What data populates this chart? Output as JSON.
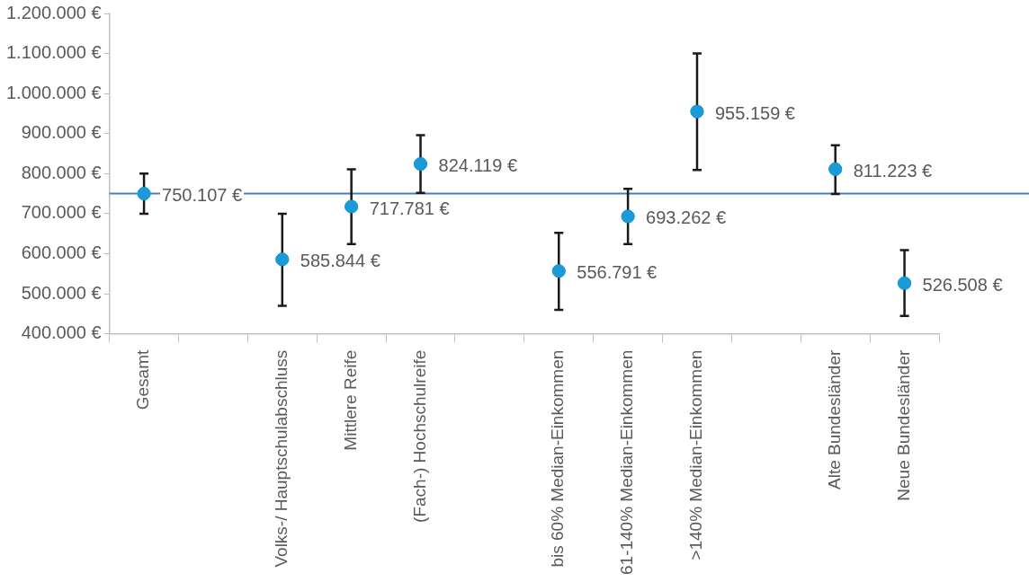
{
  "chart_data": {
    "type": "scatter",
    "categories": [
      "Gesamt",
      null,
      "Volks-/ Hauptschulabschluss",
      "Mittlere Reife",
      "(Fach-) Hochschulreife",
      null,
      "bis 60% Median-Einkommen",
      "61-140% Median-Einkommen",
      ">140% Median-Einkommen",
      null,
      "Alte Bundesländer",
      "Neue Bundesländer"
    ],
    "series": [
      {
        "color": "#1a9bd7",
        "values": [
          750107,
          null,
          585844,
          717781,
          824119,
          null,
          556791,
          693262,
          955159,
          null,
          811223,
          526508
        ],
        "errors": [
          [
            700000,
            800000
          ],
          null,
          [
            470000,
            700000
          ],
          [
            624000,
            811000
          ],
          [
            752000,
            896000
          ],
          null,
          [
            460000,
            652000
          ],
          [
            624000,
            762000
          ],
          [
            809000,
            1100000
          ],
          null,
          [
            749000,
            871000
          ],
          [
            445000,
            609000
          ]
        ],
        "value_labels": [
          "750.107 €",
          null,
          "585.844 €",
          "717.781 €",
          "824.119 €",
          null,
          "556.791 €",
          "693.262 €",
          "955.159 €",
          null,
          "811.223 €",
          "526.508 €"
        ]
      }
    ],
    "ylim": [
      400000,
      1200000
    ],
    "yticks": [
      {
        "value": 400000,
        "label": "400.000 €"
      },
      {
        "value": 500000,
        "label": "500.000 €"
      },
      {
        "value": 600000,
        "label": "600.000 €"
      },
      {
        "value": 700000,
        "label": "700.000 €"
      },
      {
        "value": 800000,
        "label": "800.000 €"
      },
      {
        "value": 900000,
        "label": "900.000 €"
      },
      {
        "value": 1000000,
        "label": "1.000.000 €"
      },
      {
        "value": 1100000,
        "label": "1.100.000 €"
      },
      {
        "value": 1200000,
        "label": "1.200.000 €"
      }
    ],
    "ref_lines": [
      {
        "axis": "y",
        "value": 750107,
        "color": "#4a7ebb"
      }
    ],
    "marker": "circle",
    "grid": false,
    "legend": false
  }
}
